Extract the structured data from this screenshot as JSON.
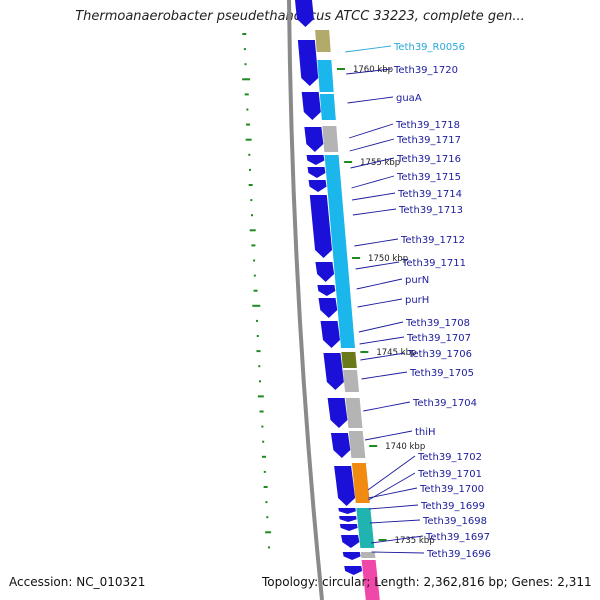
{
  "title": "Thermoanaerobacter pseudethanolicus ATCC 33223, complete gen...",
  "accession_text": "Accession: NC_010321",
  "topology_text": "Topology: circular; Length: 2,362,816 bp; Genes: 2,311",
  "colors": {
    "backbone": "#8a8a8a",
    "forward_gene": "#1a10d8",
    "cog_light_blue": "#1ab6ec",
    "cog_grey": "#b4b4b4",
    "cog_olive": "#b2aa6a",
    "cog_olive_dark": "#6a7a1a",
    "cog_orange": "#f08a10",
    "cog_teal": "#20b4b0",
    "cog_pink": "#f048a8",
    "label_blue": "#1c1c9c",
    "label_cyan": "#2aa8d8",
    "gc_tick": "#1f8a1f"
  },
  "scale_marks": [
    {
      "text": "1760 kbp"
    },
    {
      "text": "1755 kbp"
    },
    {
      "text": "1750 kbp"
    },
    {
      "text": "1745 kbp"
    },
    {
      "text": "1740 kbp"
    },
    {
      "text": "1735 kbp"
    }
  ],
  "gene_labels": [
    {
      "text": "Teth39_R0056",
      "color": "cyan"
    },
    {
      "text": "Teth39_1720"
    },
    {
      "text": "guaA"
    },
    {
      "text": "Teth39_1718"
    },
    {
      "text": "Teth39_1717"
    },
    {
      "text": "Teth39_1716"
    },
    {
      "text": "Teth39_1715"
    },
    {
      "text": "Teth39_1714"
    },
    {
      "text": "Teth39_1713"
    },
    {
      "text": "Teth39_1712"
    },
    {
      "text": "Teth39_1711"
    },
    {
      "text": "purN"
    },
    {
      "text": "purH"
    },
    {
      "text": "Teth39_1708"
    },
    {
      "text": "Teth39_1707"
    },
    {
      "text": "Teth39_1706"
    },
    {
      "text": "Teth39_1705"
    },
    {
      "text": "Teth39_1704"
    },
    {
      "text": "thiH"
    },
    {
      "text": "Teth39_1702"
    },
    {
      "text": "Teth39_1701"
    },
    {
      "text": "Teth39_1700"
    },
    {
      "text": "Teth39_1699"
    },
    {
      "text": "Teth39_1698"
    },
    {
      "text": "Teth39_1697"
    },
    {
      "text": "Teth39_1696"
    }
  ]
}
